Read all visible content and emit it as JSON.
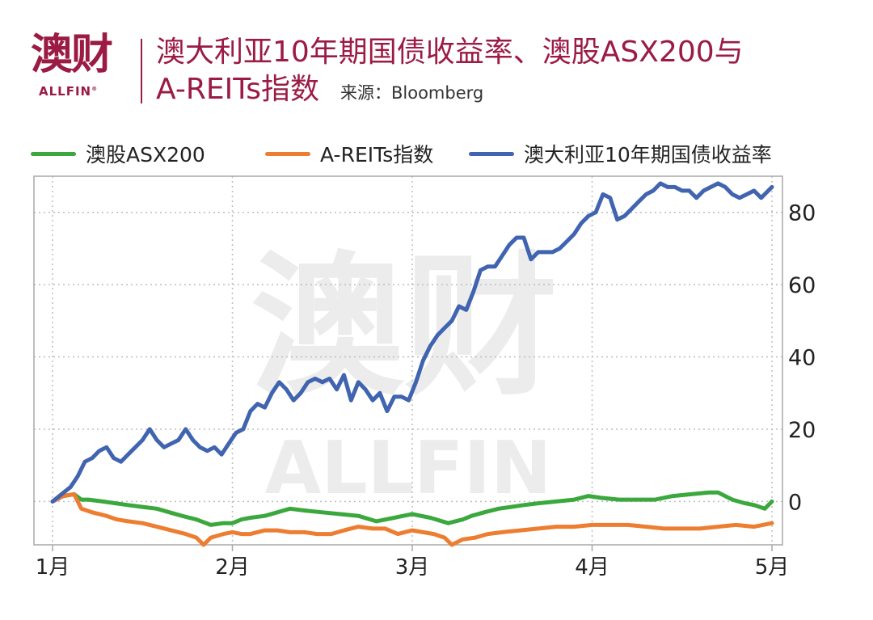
{
  "header": {
    "logo_cn": "澳财",
    "logo_en": "ALLFIN",
    "logo_mark": "®",
    "title_line1": "澳大利亚10年期国债收益率、澳股ASX200与",
    "title_line2": "A-REITs指数",
    "source": "来源：Bloomberg"
  },
  "watermark": {
    "cn": "澳财",
    "en": "ALLFIN"
  },
  "colors": {
    "brand": "#9b1b44",
    "asx200": "#3aa83c",
    "areits": "#ed7d31",
    "yield": "#4164b0",
    "grid": "#bdbdbd"
  },
  "chart_data": {
    "type": "line",
    "x_tick_labels": [
      "1月",
      "2月",
      "3月",
      "4月",
      "5月"
    ],
    "x_tick_positions": [
      0,
      1,
      2,
      3,
      4
    ],
    "xlim": [
      0,
      4
    ],
    "ylim": [
      -12,
      90
    ],
    "y_ticks": [
      0,
      20,
      40,
      60,
      80
    ],
    "y_axis_side": "right",
    "grid": true,
    "legend_position": "top",
    "series": [
      {
        "name": "澳股ASX200",
        "color": "#3aa83c",
        "x": [
          0,
          0.06,
          0.12,
          0.16,
          0.2,
          0.28,
          0.35,
          0.42,
          0.5,
          0.58,
          0.65,
          0.72,
          0.8,
          0.88,
          0.95,
          1.0,
          1.05,
          1.1,
          1.18,
          1.25,
          1.32,
          1.4,
          1.5,
          1.6,
          1.7,
          1.8,
          1.9,
          1.95,
          2.0,
          2.1,
          2.2,
          2.28,
          2.33,
          2.4,
          2.48,
          2.55,
          2.62,
          2.7,
          2.8,
          2.9,
          2.98,
          3.05,
          3.15,
          3.25,
          3.35,
          3.45,
          3.55,
          3.65,
          3.7,
          3.78,
          3.85,
          3.9,
          3.96,
          4.0
        ],
        "y": [
          0,
          1.5,
          2,
          0.5,
          0.5,
          0,
          -0.5,
          -1,
          -1.5,
          -2,
          -3,
          -4,
          -5,
          -6.5,
          -6,
          -6,
          -5,
          -4.5,
          -4,
          -3,
          -2,
          -2.5,
          -3,
          -3.5,
          -4,
          -5.5,
          -4.5,
          -4,
          -3.5,
          -4.5,
          -6,
          -5,
          -4,
          -3,
          -2,
          -1.5,
          -1,
          -0.5,
          0,
          0.5,
          1.5,
          1,
          0.5,
          0.5,
          0.5,
          1.5,
          2,
          2.5,
          2.5,
          0.5,
          -0.5,
          -1,
          -2,
          0
        ]
      },
      {
        "name": "A-REITs指数",
        "color": "#ed7d31",
        "x": [
          0,
          0.06,
          0.12,
          0.16,
          0.22,
          0.3,
          0.36,
          0.42,
          0.5,
          0.58,
          0.66,
          0.74,
          0.8,
          0.84,
          0.88,
          0.95,
          1.0,
          1.05,
          1.1,
          1.18,
          1.25,
          1.32,
          1.4,
          1.47,
          1.55,
          1.62,
          1.7,
          1.78,
          1.85,
          1.92,
          2.0,
          2.06,
          2.12,
          2.18,
          2.22,
          2.28,
          2.35,
          2.42,
          2.5,
          2.6,
          2.7,
          2.8,
          2.9,
          3.0,
          3.1,
          3.2,
          3.3,
          3.4,
          3.5,
          3.6,
          3.7,
          3.8,
          3.9,
          4.0
        ],
        "y": [
          0,
          1.5,
          2,
          -2,
          -3,
          -4,
          -5,
          -5.5,
          -6,
          -7,
          -8,
          -9,
          -10,
          -12,
          -10,
          -9,
          -8.5,
          -9,
          -9,
          -8,
          -8,
          -8.5,
          -8.5,
          -9,
          -9,
          -8,
          -7,
          -7.5,
          -7.5,
          -9,
          -8,
          -8.5,
          -9,
          -10,
          -12,
          -10.5,
          -10,
          -9,
          -8.5,
          -8,
          -7.5,
          -7,
          -7,
          -6.5,
          -6.5,
          -6.5,
          -7,
          -7.5,
          -7.5,
          -7.5,
          -7,
          -6.5,
          -7,
          -6
        ]
      },
      {
        "name": "澳大利亚10年期国债收益率",
        "color": "#4164b0",
        "x": [
          0,
          0.05,
          0.1,
          0.14,
          0.18,
          0.22,
          0.26,
          0.3,
          0.34,
          0.38,
          0.42,
          0.46,
          0.5,
          0.54,
          0.58,
          0.62,
          0.66,
          0.7,
          0.74,
          0.78,
          0.82,
          0.86,
          0.9,
          0.94,
          0.98,
          1.02,
          1.06,
          1.1,
          1.14,
          1.18,
          1.22,
          1.26,
          1.3,
          1.34,
          1.38,
          1.42,
          1.46,
          1.5,
          1.54,
          1.58,
          1.62,
          1.66,
          1.7,
          1.74,
          1.78,
          1.82,
          1.86,
          1.9,
          1.94,
          1.98,
          2.02,
          2.06,
          2.1,
          2.14,
          2.18,
          2.22,
          2.26,
          2.3,
          2.34,
          2.38,
          2.42,
          2.46,
          2.5,
          2.54,
          2.58,
          2.62,
          2.66,
          2.7,
          2.74,
          2.78,
          2.82,
          2.86,
          2.9,
          2.94,
          2.98,
          3.02,
          3.06,
          3.1,
          3.14,
          3.18,
          3.22,
          3.26,
          3.3,
          3.34,
          3.38,
          3.42,
          3.46,
          3.5,
          3.54,
          3.58,
          3.62,
          3.66,
          3.7,
          3.74,
          3.78,
          3.82,
          3.86,
          3.9,
          3.94,
          3.98,
          4.0
        ],
        "y": [
          0,
          2,
          4,
          7,
          11,
          12,
          14,
          15,
          12,
          11,
          13,
          15,
          17,
          20,
          17,
          15,
          16,
          17,
          20,
          17,
          15,
          14,
          15,
          13,
          16,
          19,
          20,
          25,
          27,
          26,
          30,
          33,
          31,
          28,
          30,
          33,
          34,
          33,
          34,
          31,
          35,
          28,
          33,
          31,
          28,
          30,
          25,
          29,
          29,
          28,
          33,
          39,
          43,
          46,
          48,
          50,
          54,
          53,
          58,
          64,
          65,
          65,
          68,
          71,
          73,
          73,
          67,
          69,
          69,
          69,
          70,
          72,
          74,
          77,
          79,
          80,
          85,
          84,
          78,
          79,
          81,
          83,
          85,
          86,
          88,
          87,
          87,
          86,
          86,
          84,
          86,
          87,
          88,
          87,
          85,
          84,
          85,
          86,
          84,
          86,
          87
        ]
      }
    ]
  }
}
